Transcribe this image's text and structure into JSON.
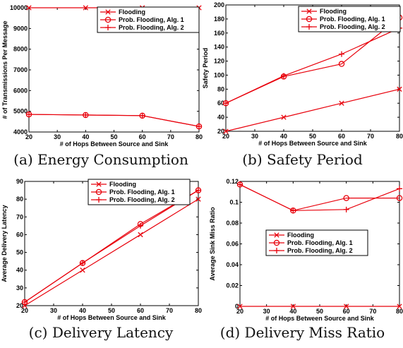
{
  "colors": {
    "series": "#e8000b",
    "axis": "#000000",
    "background": "#ffffff"
  },
  "chart_data": [
    {
      "type": "line",
      "caption": "(a) Energy Consumption",
      "xlabel": "# of Hops Between Source and Sink",
      "ylabel": "# of Transmissions Per Message",
      "xlim": [
        20,
        80
      ],
      "ylim": [
        4000,
        10000
      ],
      "xticks": [
        20,
        30,
        40,
        50,
        60,
        70,
        80
      ],
      "yticks": [
        4000,
        5000,
        6000,
        7000,
        8000,
        9000,
        10000
      ],
      "legend": "top-right",
      "series": [
        {
          "name": "Flooding",
          "marker": "x",
          "x": [
            20,
            40,
            60,
            80
          ],
          "y": [
            10000,
            10000,
            10000,
            10000
          ]
        },
        {
          "name": "Prob. Flooding, Alg. 1",
          "marker": "o",
          "x": [
            20,
            40,
            60,
            80
          ],
          "y": [
            4850,
            4820,
            4790,
            4270
          ]
        },
        {
          "name": "Prob. Flooding, Alg. 2",
          "marker": "+",
          "x": [
            20,
            40,
            60,
            80
          ],
          "y": [
            4850,
            4820,
            4790,
            4270
          ]
        }
      ]
    },
    {
      "type": "line",
      "caption": "(b) Safety Period",
      "xlabel": "# of Hops Between Source and Sink",
      "ylabel": "Safety Period",
      "xlim": [
        20,
        80
      ],
      "ylim": [
        20,
        200
      ],
      "xticks": [
        20,
        30,
        40,
        50,
        60,
        70,
        80
      ],
      "yticks": [
        20,
        40,
        60,
        80,
        100,
        120,
        140,
        160,
        180,
        200
      ],
      "legend": "top-right",
      "series": [
        {
          "name": "Flooding",
          "marker": "x",
          "x": [
            20,
            40,
            60,
            80
          ],
          "y": [
            20,
            40,
            60,
            80
          ]
        },
        {
          "name": "Prob. Flooding, Alg. 1",
          "marker": "o",
          "x": [
            20,
            40,
            60,
            80
          ],
          "y": [
            60,
            98,
            116,
            182
          ]
        },
        {
          "name": "Prob. Flooding, Alg. 2",
          "marker": "+",
          "x": [
            20,
            40,
            60,
            80
          ],
          "y": [
            60,
            99,
            130,
            167
          ]
        }
      ]
    },
    {
      "type": "line",
      "caption": "(c) Delivery Latency",
      "xlabel": "# of Hops Between Source and Sink",
      "ylabel": "Average Delivery Latency",
      "xlim": [
        20,
        80
      ],
      "ylim": [
        20,
        90
      ],
      "xticks": [
        20,
        30,
        40,
        50,
        60,
        70,
        80
      ],
      "yticks": [
        20,
        30,
        40,
        50,
        60,
        70,
        80,
        90
      ],
      "legend": "top-right",
      "series": [
        {
          "name": "Flooding",
          "marker": "x",
          "x": [
            20,
            40,
            60,
            80
          ],
          "y": [
            20,
            40,
            60,
            80
          ]
        },
        {
          "name": "Prob. Flooding, Alg. 1",
          "marker": "o",
          "x": [
            20,
            40,
            60,
            80
          ],
          "y": [
            22,
            44,
            66,
            85
          ]
        },
        {
          "name": "Prob. Flooding, Alg. 2",
          "marker": "+",
          "x": [
            20,
            40,
            60,
            80
          ],
          "y": [
            22,
            44,
            65,
            85
          ]
        }
      ]
    },
    {
      "type": "line",
      "caption": "(d) Delivery Miss Ratio",
      "xlabel": "# of Hops Between Source and Sink",
      "ylabel": "Average Sink Miss Ratio",
      "xlim": [
        20,
        80
      ],
      "ylim": [
        0,
        0.12
      ],
      "xticks": [
        20,
        30,
        40,
        50,
        60,
        70,
        80
      ],
      "yticks": [
        0,
        0.02,
        0.04,
        0.06,
        0.08,
        0.1,
        0.12
      ],
      "yticklabels": [
        "0",
        "0.02",
        "0.04",
        "0.06",
        "0.08",
        "0.1",
        "0.12"
      ],
      "legend": "center-right",
      "series": [
        {
          "name": "Flooding",
          "marker": "x",
          "x": [
            20,
            40,
            60,
            80
          ],
          "y": [
            0,
            0,
            0,
            0
          ]
        },
        {
          "name": "Prob. Flooding, Alg. 1",
          "marker": "o",
          "x": [
            20,
            40,
            60,
            80
          ],
          "y": [
            0.117,
            0.092,
            0.104,
            0.104
          ]
        },
        {
          "name": "Prob. Flooding, Alg. 2",
          "marker": "+",
          "x": [
            20,
            40,
            60,
            80
          ],
          "y": [
            0.117,
            0.092,
            0.093,
            0.113
          ]
        }
      ]
    }
  ]
}
